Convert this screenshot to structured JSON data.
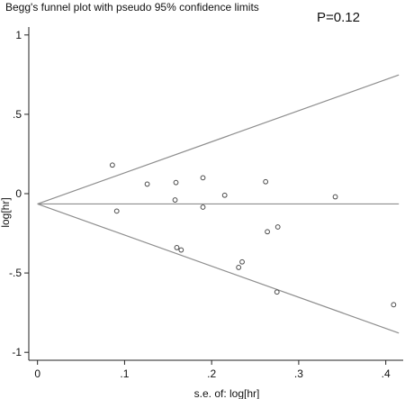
{
  "chart_data": {
    "type": "scatter",
    "title": "Begg's funnel plot with pseudo 95% confidence limits",
    "annotation": "P=0.12",
    "xlabel": "s.e. of: log[hr]",
    "ylabel": "log[hr]",
    "xlim": [
      -0.01,
      0.42
    ],
    "ylim": [
      -1.05,
      1.05
    ],
    "x_ticks": [
      0,
      0.1,
      0.2,
      0.3,
      0.4
    ],
    "x_tick_labels": [
      "0",
      ".1",
      ".2",
      ".3",
      ".4"
    ],
    "y_ticks": [
      1,
      0.5,
      0,
      -0.5,
      -1
    ],
    "y_tick_labels": [
      "1",
      ".5",
      "0",
      "-.5",
      "-1"
    ],
    "pooled_estimate": -0.065,
    "confidence_limit": "pseudo 95%",
    "grid": false,
    "points": [
      {
        "x": 0.086,
        "y": 0.18
      },
      {
        "x": 0.091,
        "y": -0.11
      },
      {
        "x": 0.126,
        "y": 0.06
      },
      {
        "x": 0.159,
        "y": 0.07
      },
      {
        "x": 0.158,
        "y": -0.04
      },
      {
        "x": 0.16,
        "y": -0.34
      },
      {
        "x": 0.165,
        "y": -0.355
      },
      {
        "x": 0.19,
        "y": 0.1
      },
      {
        "x": 0.19,
        "y": -0.085
      },
      {
        "x": 0.215,
        "y": -0.01
      },
      {
        "x": 0.235,
        "y": -0.43
      },
      {
        "x": 0.231,
        "y": -0.465
      },
      {
        "x": 0.262,
        "y": 0.075
      },
      {
        "x": 0.264,
        "y": -0.24
      },
      {
        "x": 0.276,
        "y": -0.21
      },
      {
        "x": 0.275,
        "y": -0.62
      },
      {
        "x": 0.342,
        "y": -0.02
      },
      {
        "x": 0.409,
        "y": -0.7
      }
    ]
  }
}
